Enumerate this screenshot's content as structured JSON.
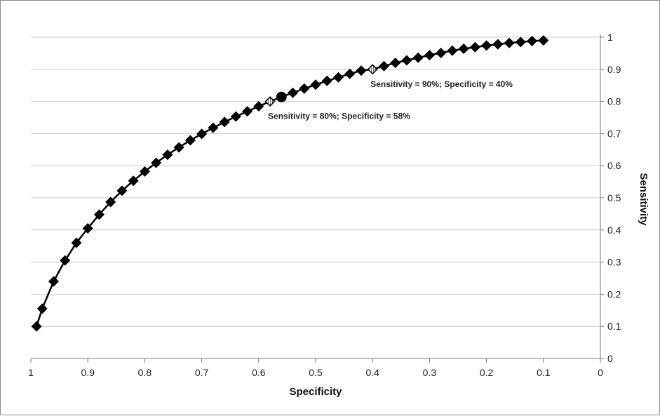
{
  "chart_data": {
    "type": "line",
    "xlabel": "Specificity",
    "ylabel": "Sensitivity",
    "xlim": [
      1,
      0
    ],
    "ylim": [
      0,
      1
    ],
    "x_reversed": true,
    "grid": true,
    "y_axis_position": "right",
    "x_ticks": [
      "1",
      "0.9",
      "0.8",
      "0.7",
      "0.6",
      "0.5",
      "0.4",
      "0.3",
      "0.2",
      "0.1",
      "0"
    ],
    "y_ticks": [
      "0",
      "0.1",
      "0.2",
      "0.3",
      "0.4",
      "0.5",
      "0.6",
      "0.7",
      "0.8",
      "0.9",
      "1"
    ],
    "series": [
      {
        "marker": "diamond",
        "color": "#000000",
        "points": [
          [
            0.99,
            0.1
          ],
          [
            0.98,
            0.155
          ],
          [
            0.96,
            0.24
          ],
          [
            0.94,
            0.305
          ],
          [
            0.92,
            0.36
          ],
          [
            0.9,
            0.405
          ],
          [
            0.88,
            0.448
          ],
          [
            0.86,
            0.487
          ],
          [
            0.84,
            0.522
          ],
          [
            0.82,
            0.553
          ],
          [
            0.8,
            0.582
          ],
          [
            0.78,
            0.609
          ],
          [
            0.76,
            0.634
          ],
          [
            0.74,
            0.657
          ],
          [
            0.72,
            0.679
          ],
          [
            0.7,
            0.699
          ],
          [
            0.68,
            0.718
          ],
          [
            0.66,
            0.736
          ],
          [
            0.64,
            0.753
          ],
          [
            0.62,
            0.769
          ],
          [
            0.6,
            0.785
          ],
          [
            0.58,
            0.8
          ],
          [
            0.56,
            0.814
          ],
          [
            0.54,
            0.827
          ],
          [
            0.52,
            0.84
          ],
          [
            0.5,
            0.852
          ],
          [
            0.48,
            0.864
          ],
          [
            0.46,
            0.875
          ],
          [
            0.44,
            0.886
          ],
          [
            0.42,
            0.896
          ],
          [
            0.4,
            0.9
          ],
          [
            0.38,
            0.91
          ],
          [
            0.36,
            0.92
          ],
          [
            0.34,
            0.928
          ],
          [
            0.32,
            0.936
          ],
          [
            0.3,
            0.944
          ],
          [
            0.28,
            0.951
          ],
          [
            0.26,
            0.958
          ],
          [
            0.24,
            0.964
          ],
          [
            0.22,
            0.969
          ],
          [
            0.2,
            0.974
          ],
          [
            0.18,
            0.978
          ],
          [
            0.16,
            0.982
          ],
          [
            0.14,
            0.985
          ],
          [
            0.12,
            0.988
          ],
          [
            0.1,
            0.99
          ]
        ]
      }
    ],
    "highlight_points": [
      {
        "x": 0.58,
        "y": 0.8,
        "marker": "striped-diamond"
      },
      {
        "x": 0.4,
        "y": 0.9,
        "marker": "striped-diamond"
      },
      {
        "x": 0.56,
        "y": 0.814,
        "marker": "circle"
      }
    ],
    "annotations": [
      {
        "text": "Sensitivity = 90%; Specificity = 40%",
        "x": 0.4,
        "y": 0.9,
        "position": "below-right"
      },
      {
        "text": "Sensitivity = 80%; Specificity = 58%",
        "x": 0.58,
        "y": 0.8,
        "position": "below-right"
      }
    ]
  }
}
